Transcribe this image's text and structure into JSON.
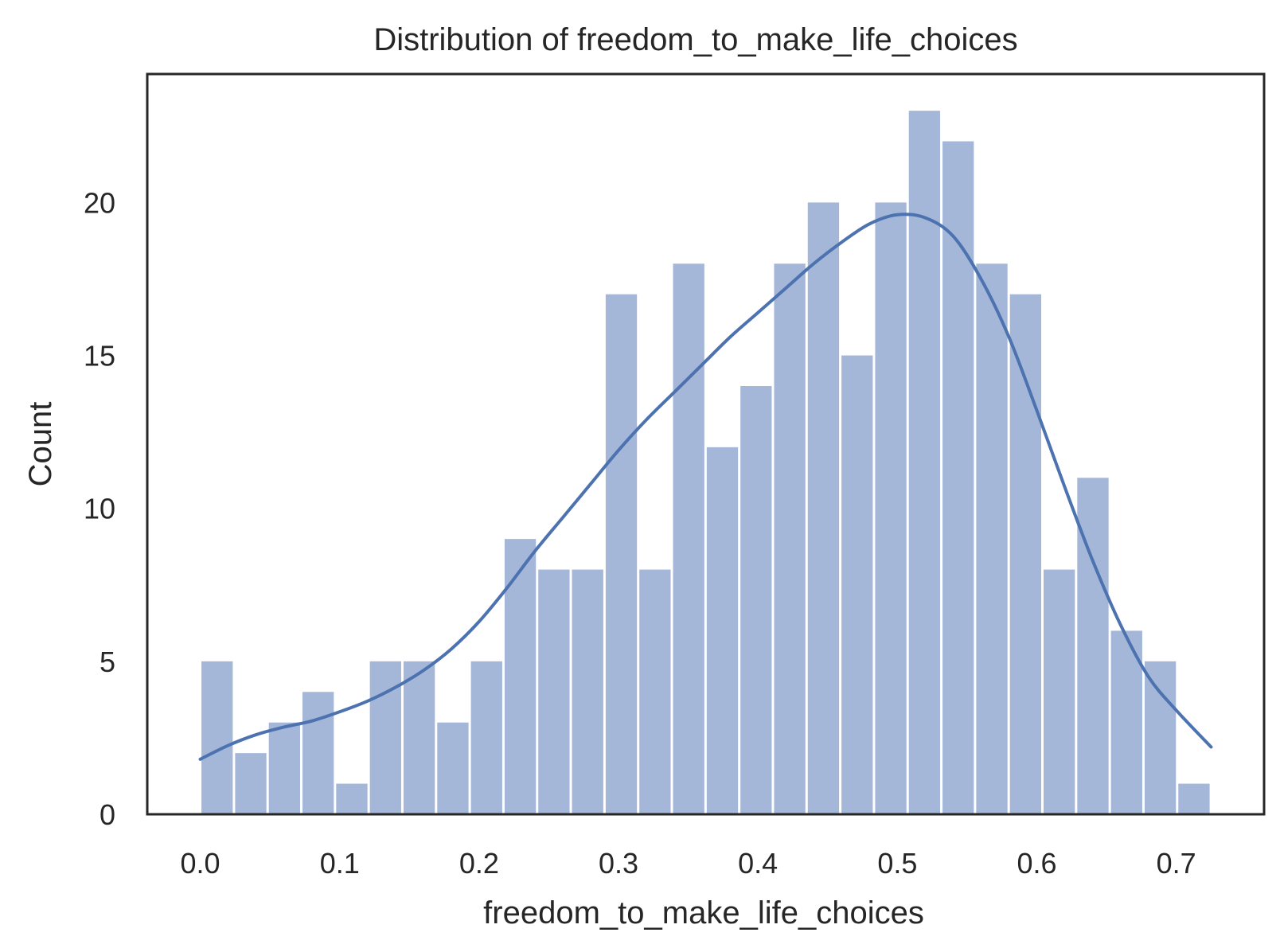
{
  "chart_data": {
    "type": "bar",
    "subtype": "histogram-with-kde",
    "title": "Distribution of freedom_to_make_life_choices",
    "xlabel": "freedom_to_make_life_choices",
    "ylabel": "Count",
    "xlim": [
      -0.038,
      0.763
    ],
    "ylim": [
      0,
      24.2
    ],
    "grid": false,
    "xticks": [
      {
        "value": 0.0,
        "label": "0.0"
      },
      {
        "value": 0.1,
        "label": "0.1"
      },
      {
        "value": 0.2,
        "label": "0.2"
      },
      {
        "value": 0.3,
        "label": "0.3"
      },
      {
        "value": 0.4,
        "label": "0.4"
      },
      {
        "value": 0.5,
        "label": "0.5"
      },
      {
        "value": 0.6,
        "label": "0.6"
      },
      {
        "value": 0.7,
        "label": "0.7"
      }
    ],
    "yticks": [
      {
        "value": 0,
        "label": "0"
      },
      {
        "value": 5,
        "label": "5"
      },
      {
        "value": 10,
        "label": "10"
      },
      {
        "value": 15,
        "label": "15"
      },
      {
        "value": 20,
        "label": "20"
      }
    ],
    "bin_start": 0.0,
    "bin_width": 0.02416,
    "values": [
      5,
      2,
      3,
      4,
      1,
      5,
      5,
      3,
      5,
      9,
      8,
      8,
      17,
      8,
      18,
      12,
      14,
      18,
      20,
      15,
      20,
      23,
      22,
      18,
      17,
      8,
      11,
      6,
      5,
      1
    ],
    "kde": {
      "x": [
        0.0,
        0.02,
        0.04,
        0.06,
        0.08,
        0.1,
        0.12,
        0.14,
        0.16,
        0.18,
        0.2,
        0.22,
        0.24,
        0.26,
        0.28,
        0.3,
        0.32,
        0.34,
        0.36,
        0.38,
        0.4,
        0.42,
        0.44,
        0.46,
        0.48,
        0.5,
        0.52,
        0.54,
        0.56,
        0.58,
        0.6,
        0.62,
        0.64,
        0.66,
        0.68,
        0.7,
        0.725
      ],
      "y": [
        1.8,
        2.25,
        2.6,
        2.85,
        3.05,
        3.35,
        3.7,
        4.15,
        4.7,
        5.4,
        6.3,
        7.4,
        8.6,
        9.7,
        10.8,
        11.9,
        12.9,
        13.8,
        14.7,
        15.6,
        16.4,
        17.2,
        18.0,
        18.7,
        19.3,
        19.6,
        19.5,
        18.9,
        17.5,
        15.6,
        13.2,
        10.7,
        8.3,
        6.2,
        4.5,
        3.4,
        2.2
      ]
    },
    "colors": {
      "bar": "#a5b7d8",
      "line": "#4c72b0",
      "axes": "#262626"
    }
  }
}
